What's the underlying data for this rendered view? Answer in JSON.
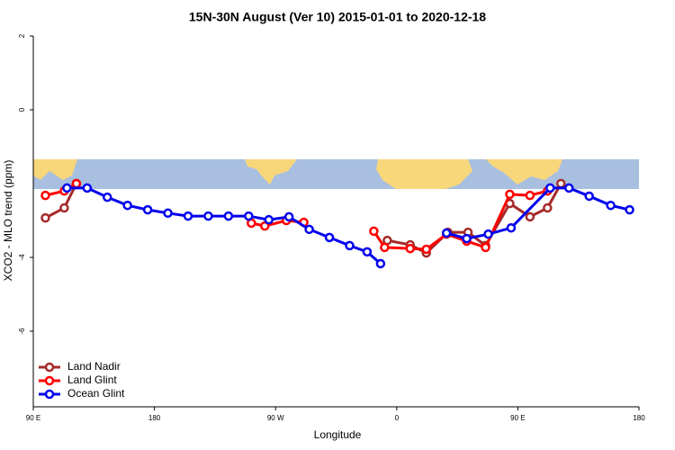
{
  "chart_data": {
    "type": "line",
    "title": "15N-30N August (Ver 10)   2015-01-01 to 2020-12-18",
    "x_label": "Longitude",
    "y_label": "XCO2 - MLO trend (ppm)",
    "xlim": [
      90,
      540
    ],
    "ylim": [
      -8,
      2
    ],
    "xticks": [
      {
        "value": 90,
        "label": "90 E"
      },
      180,
      {
        "value": 270,
        "label": "90 W"
      },
      {
        "value": 360,
        "label": "0"
      },
      {
        "value": 450,
        "label": "90 E"
      },
      {
        "value": 540,
        "label": "180"
      }
    ],
    "yticks": [
      -6,
      -4,
      0,
      2
    ],
    "legend": "bottom-left",
    "series": [
      {
        "name": "Land Nadir",
        "color": "#a52a2a",
        "x": [
          99,
          113,
          122,
          null,
          353,
          370,
          382,
          398,
          413,
          426,
          444,
          459,
          472,
          482
        ],
        "values": [
          -2.93,
          -2.66,
          -2.0,
          null,
          -3.54,
          -3.66,
          -3.88,
          -3.32,
          -3.32,
          -3.68,
          -2.54,
          -2.9,
          -2.66,
          -2.0
        ]
      },
      {
        "name": "Land Glint",
        "color": "#ff0000",
        "x": [
          99,
          113,
          122,
          null,
          252,
          262,
          278,
          291,
          null,
          343,
          351,
          370,
          382,
          397,
          412,
          426,
          444,
          459,
          472
        ],
        "values": [
          -2.32,
          -2.2,
          -2.0,
          null,
          -3.07,
          -3.15,
          -3.0,
          -3.05,
          null,
          -3.29,
          -3.73,
          -3.76,
          -3.78,
          -3.37,
          -3.56,
          -3.73,
          -2.29,
          -2.32,
          -2.2
        ]
      },
      {
        "name": "Ocean Glint",
        "color": "#0000ee",
        "x": [
          115,
          130,
          145,
          160,
          175,
          190,
          205,
          220,
          235,
          250,
          265,
          280,
          295,
          310,
          325,
          338,
          348,
          null,
          397,
          412,
          428,
          445,
          474,
          488,
          503,
          519,
          533
        ],
        "values": [
          -2.12,
          -2.12,
          -2.37,
          -2.59,
          -2.71,
          -2.8,
          -2.88,
          -2.88,
          -2.88,
          -2.88,
          -2.98,
          -2.9,
          -3.24,
          -3.46,
          -3.68,
          -3.85,
          -4.17,
          null,
          -3.34,
          -3.49,
          -3.37,
          -3.2,
          -2.12,
          -2.12,
          -2.34,
          -2.59,
          -2.71
        ]
      }
    ]
  }
}
